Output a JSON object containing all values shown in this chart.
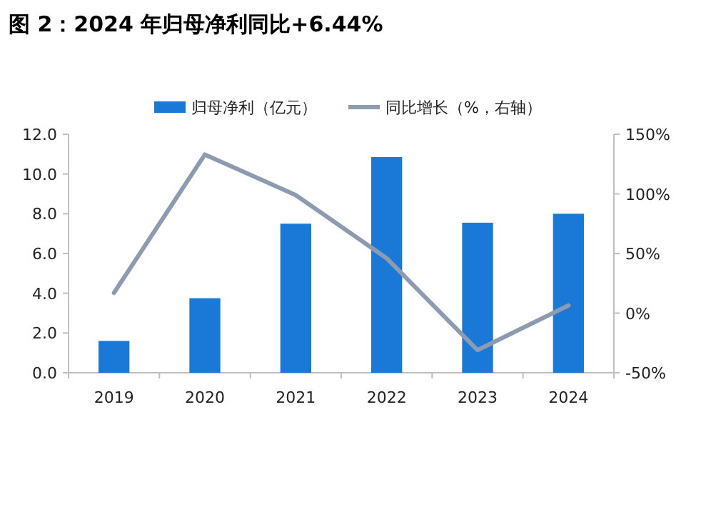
{
  "chart_data": {
    "type": "bar",
    "title": "图 2：2024 年归母净利同比+6.44%",
    "categories": [
      "2019",
      "2020",
      "2021",
      "2022",
      "2023",
      "2024"
    ],
    "series": [
      {
        "name": "归母净利（亿元）",
        "color": "#1a78d6",
        "values": [
          1.6,
          3.75,
          7.5,
          10.85,
          7.55,
          8.0
        ]
      },
      {
        "name": "同比增长（%，右轴）",
        "type": "line",
        "axis": "y2",
        "color": "#8c9bb0",
        "values": [
          17,
          133,
          99,
          46,
          -31,
          6.44
        ]
      }
    ],
    "ylim": [
      0,
      12
    ],
    "yticks": [
      {
        "value": 0,
        "label": "0.0"
      },
      {
        "value": 2,
        "label": "2.0"
      },
      {
        "value": 4,
        "label": "4.0"
      },
      {
        "value": 6,
        "label": "6.0"
      },
      {
        "value": 8,
        "label": "8.0"
      },
      {
        "value": 10,
        "label": "10.0"
      },
      {
        "value": 12,
        "label": "12.0"
      }
    ],
    "y2lim": [
      -50,
      150
    ],
    "y2ticks": [
      {
        "value": -50,
        "label": "-50%"
      },
      {
        "value": 0,
        "label": "0%"
      },
      {
        "value": 50,
        "label": "50%"
      },
      {
        "value": 100,
        "label": "100%"
      },
      {
        "value": 150,
        "label": "150%"
      }
    ],
    "legend": "top",
    "grid": false,
    "marker": "none",
    "line_style": "solid"
  }
}
